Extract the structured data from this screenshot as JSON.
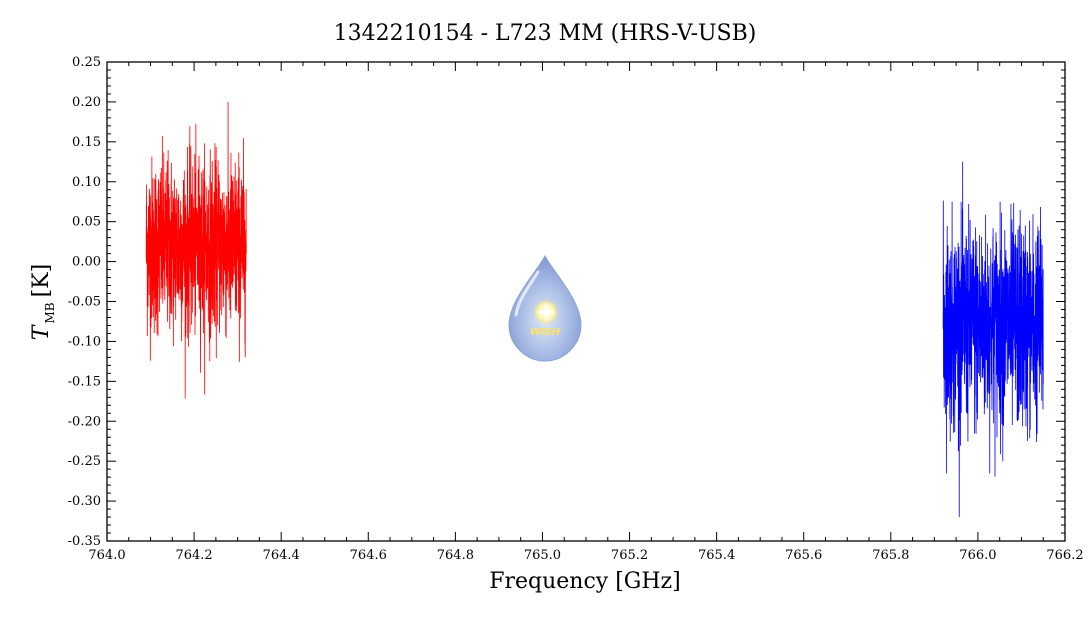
{
  "chart_data": {
    "type": "line",
    "title": "1342210154 - L723 MM (HRS-V-USB)",
    "xlabel": "Frequency [GHz]",
    "ylabel_main": "T",
    "ylabel_sub": "MB",
    "ylabel_unit": "[K]",
    "xlim": [
      764.0,
      766.2
    ],
    "ylim": [
      -0.35,
      0.25
    ],
    "xticks": [
      "764.0",
      "764.2",
      "764.4",
      "764.6",
      "764.8",
      "765.0",
      "765.2",
      "765.4",
      "765.6",
      "765.8",
      "766.0",
      "766.2"
    ],
    "yticks": [
      "0.25",
      "0.20",
      "0.15",
      "0.10",
      "0.05",
      "0.00",
      "-0.05",
      "-0.10",
      "-0.15",
      "-0.20",
      "-0.25",
      "-0.30",
      "-0.35"
    ],
    "grid": false,
    "series": [
      {
        "color": "#ff0000",
        "x_range": [
          764.09,
          764.32
        ],
        "center": 0.02,
        "noise_sigma": 0.055,
        "min": -0.2,
        "max": 0.22
      },
      {
        "color": "#0000ff",
        "x_range": [
          765.92,
          766.15
        ],
        "center": -0.08,
        "noise_sigma": 0.065,
        "min": -0.32,
        "max": 0.19
      }
    ],
    "logo": {
      "text": "WISH"
    }
  }
}
